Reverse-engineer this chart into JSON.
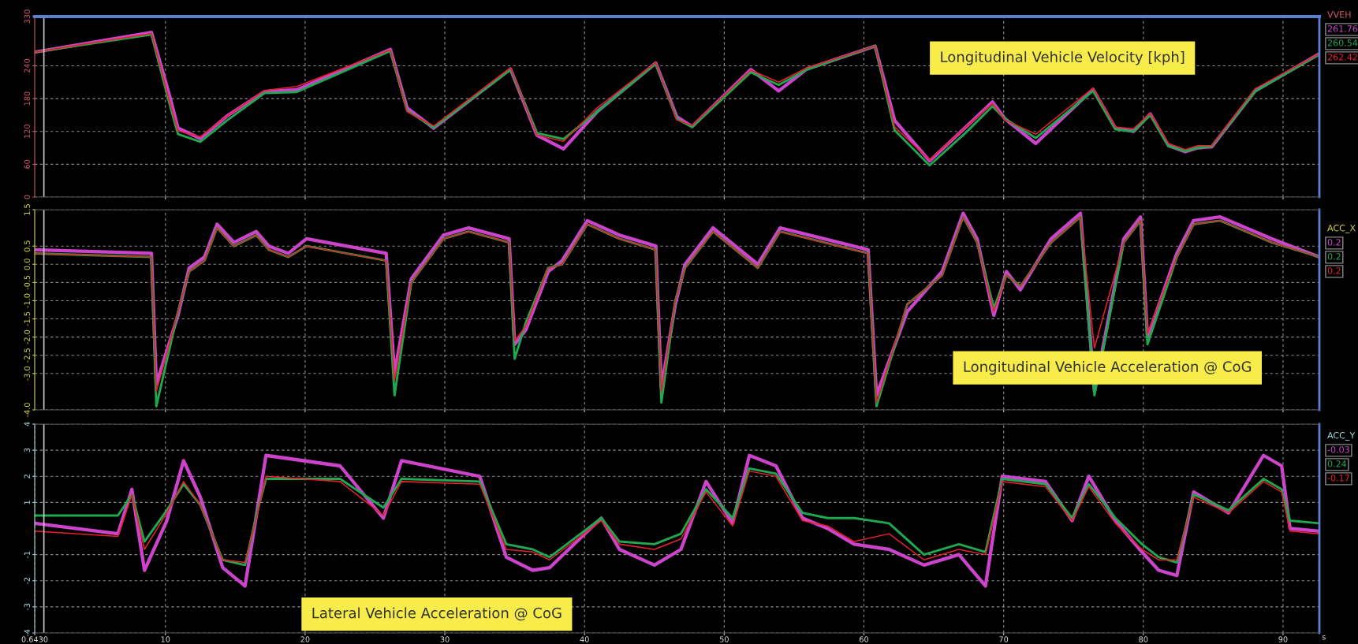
{
  "chart_data": [
    {
      "type": "line",
      "title": "Longitudinal Vehicle Velocity [kph]",
      "x": [
        0.643,
        9.0,
        10.3,
        10.9,
        12.5,
        14.4,
        17.1,
        19.4,
        26.1,
        27.3,
        29.2,
        34.7,
        36.6,
        38.5,
        40.9,
        45.1,
        46.6,
        47.7,
        51.9,
        53.9,
        55.9,
        60.8,
        62.2,
        64.7,
        67.3,
        69.2,
        70.1,
        72.3,
        76.4,
        78.0,
        79.3,
        80.5,
        81.8,
        83.0,
        83.9,
        84.9,
        88.0,
        92.6
      ],
      "series": [
        {
          "color": "#cc44cc",
          "values": [
            265,
            301,
            185,
            126,
            107,
            148,
            193,
            196,
            270,
            163,
            126,
            234,
            113,
            88,
            156,
            245,
            147,
            129,
            233,
            194,
            234,
            276,
            140,
            66,
            128,
            174,
            143,
            98,
            197,
            126,
            120,
            152,
            94,
            83,
            90,
            92,
            194,
            262
          ]
        },
        {
          "color": "#1fa84f",
          "values": [
            265,
            297,
            170,
            115,
            101,
            140,
            190,
            192,
            267,
            158,
            127,
            233,
            117,
            106,
            156,
            244,
            143,
            128,
            228,
            205,
            233,
            276,
            122,
            58,
            118,
            166,
            143,
            108,
            194,
            124,
            120,
            150,
            93,
            84,
            90,
            93,
            193,
            261
          ]
        },
        {
          "color": "#e8202a",
          "values": [
            265,
            299,
            175,
            121,
            110,
            148,
            195,
            202,
            269,
            156,
            130,
            236,
            113,
            102,
            163,
            246,
            141,
            131,
            232,
            210,
            236,
            276,
            128,
            68,
            128,
            171,
            141,
            115,
            199,
            128,
            125,
            153,
            98,
            87,
            94,
            94,
            198,
            262
          ]
        }
      ],
      "xlim": [
        0.643,
        92.6
      ],
      "xticks": [
        10,
        20,
        30,
        40,
        50,
        60,
        70,
        80,
        90
      ],
      "ylim": [
        0,
        330
      ],
      "yticks": [
        0,
        60,
        120,
        180,
        240,
        330
      ],
      "grid": true,
      "tick_labels": "y",
      "ref_lines": [
        {
          "axis": "x",
          "value": 1.3,
          "color": "#c8c8c8"
        }
      ],
      "annotations": [
        "VVEH",
        "261.76",
        "260.54",
        "262.42"
      ]
    },
    {
      "type": "line",
      "title": "Longitudinal Vehicle Acceleration @ CoG",
      "x": [
        0.643,
        9.0,
        9.35,
        10.9,
        11.7,
        12.8,
        13.7,
        14.9,
        16.5,
        17.4,
        18.8,
        20.1,
        25.8,
        26.4,
        27.6,
        29.9,
        31.7,
        34.6,
        35.0,
        35.8,
        37.4,
        38.4,
        40.2,
        42.5,
        45.1,
        45.5,
        46.5,
        47.2,
        49.2,
        52.4,
        54.0,
        60.3,
        60.9,
        63.1,
        65.6,
        67.1,
        68.1,
        69.3,
        70.2,
        71.2,
        73.4,
        75.5,
        76.5,
        78.6,
        79.8,
        80.3,
        82.4,
        83.6,
        85.5,
        89.2,
        92.6
      ],
      "series": [
        {
          "color": "#cc44cc",
          "values": [
            0.4,
            0.3,
            -3.3,
            -1.4,
            -0.1,
            0.2,
            1.1,
            0.6,
            0.9,
            0.5,
            0.3,
            0.7,
            0.3,
            -3.0,
            -0.4,
            0.8,
            1.0,
            0.7,
            -2.2,
            -1.8,
            -0.2,
            0.1,
            1.2,
            0.8,
            0.5,
            -3.4,
            -1.1,
            0.0,
            1.0,
            0.0,
            1.0,
            0.4,
            -3.6,
            -1.3,
            -0.2,
            1.4,
            0.7,
            -1.4,
            -0.2,
            -0.7,
            0.7,
            1.4,
            -3.5,
            0.7,
            1.3,
            -2.0,
            0.3,
            1.2,
            1.3,
            0.7,
            0.2
          ]
        },
        {
          "color": "#1fa84f",
          "values": [
            0.3,
            0.2,
            -3.9,
            -1.3,
            -0.2,
            0.1,
            1.0,
            0.5,
            0.8,
            0.4,
            0.2,
            0.5,
            0.1,
            -3.6,
            -0.5,
            0.7,
            0.9,
            0.6,
            -2.6,
            -1.6,
            -0.1,
            0.0,
            1.1,
            0.7,
            0.4,
            -3.8,
            -1.0,
            -0.1,
            0.9,
            -0.1,
            0.9,
            0.3,
            -3.9,
            -1.1,
            -0.3,
            1.3,
            0.6,
            -1.2,
            -0.3,
            -0.6,
            0.6,
            1.3,
            -3.6,
            0.6,
            1.2,
            -2.2,
            0.2,
            1.1,
            1.2,
            0.6,
            0.2
          ]
        },
        {
          "color": "#e8202a",
          "values": [
            0.3,
            0.2,
            -3.5,
            -1.3,
            -0.2,
            0.1,
            1.0,
            0.5,
            0.8,
            0.4,
            0.2,
            0.5,
            0.1,
            -3.2,
            -0.5,
            0.7,
            0.9,
            0.6,
            -2.1,
            -1.7,
            -0.1,
            0.0,
            1.1,
            0.7,
            0.4,
            -3.5,
            -1.0,
            -0.1,
            0.9,
            -0.1,
            0.9,
            0.3,
            -3.8,
            -1.1,
            -0.3,
            1.3,
            0.6,
            -1.3,
            -0.3,
            -0.6,
            0.6,
            1.3,
            -2.3,
            0.6,
            1.2,
            -1.9,
            0.2,
            1.1,
            1.2,
            0.6,
            0.2
          ]
        }
      ],
      "xlim": [
        0.643,
        92.6
      ],
      "xticks": [
        10,
        20,
        30,
        40,
        50,
        60,
        70,
        80,
        90
      ],
      "ylim": [
        -4.0,
        1.5
      ],
      "yticks": [
        1.5,
        0.5,
        {
          "value": 0,
          "label": "0.0"
        },
        -0.5,
        {
          "value": -1,
          "label": "-1.0"
        },
        -1.5,
        {
          "value": -2,
          "label": "-2.0"
        },
        -2.5,
        {
          "value": -3,
          "label": "-3.0"
        },
        {
          "value": -4,
          "label": "-4.0"
        }
      ],
      "grid": true,
      "tick_labels": "y",
      "ref_lines": [
        {
          "axis": "x",
          "value": 1.3,
          "color": "#c8c8c8"
        }
      ],
      "annotations": [
        "ACC_X",
        "0.2",
        "0.2",
        "0.2"
      ]
    },
    {
      "type": "line",
      "title": "Lateral Vehicle Acceleration @ CoG",
      "xlabel": "s",
      "x": [
        0.643,
        6.6,
        7.6,
        8.5,
        10.1,
        11.3,
        12.5,
        14.1,
        15.7,
        16.6,
        17.2,
        22.5,
        25.6,
        26.9,
        32.5,
        34.4,
        36.3,
        37.5,
        41.2,
        42.5,
        45.0,
        46.9,
        48.7,
        50.6,
        51.8,
        53.7,
        55.6,
        57.4,
        59.3,
        61.8,
        64.3,
        66.8,
        68.7,
        69.9,
        73.0,
        74.9,
        76.1,
        78.0,
        79.9,
        81.1,
        82.4,
        83.6,
        86.1,
        88.6,
        89.9,
        90.5,
        92.6
      ],
      "series": [
        {
          "color": "#cc44cc",
          "values": [
            0.2,
            -0.2,
            1.5,
            -1.6,
            0.3,
            2.6,
            1.2,
            -1.5,
            -2.2,
            0.8,
            2.8,
            2.4,
            0.4,
            2.6,
            2.0,
            -1.1,
            -1.6,
            -1.5,
            0.4,
            -0.8,
            -1.4,
            -0.8,
            1.8,
            0.2,
            2.8,
            2.4,
            0.4,
            0.0,
            -0.6,
            -0.8,
            -1.4,
            -1.0,
            -2.2,
            2.0,
            1.8,
            0.3,
            2.0,
            0.3,
            -0.9,
            -1.6,
            -1.8,
            1.4,
            0.6,
            2.8,
            2.4,
            0.0,
            -0.1
          ]
        },
        {
          "color": "#1fa84f",
          "values": [
            0.5,
            0.5,
            1.3,
            -0.5,
            0.7,
            1.7,
            0.9,
            -1.2,
            -1.4,
            0.7,
            1.9,
            1.9,
            0.8,
            1.9,
            1.8,
            -0.6,
            -0.8,
            -1.1,
            0.4,
            -0.5,
            -0.6,
            -0.2,
            1.5,
            0.4,
            2.3,
            2.1,
            0.6,
            0.4,
            0.4,
            0.2,
            -1.0,
            -0.6,
            -0.9,
            1.9,
            1.7,
            0.4,
            1.7,
            0.4,
            -0.6,
            -1.1,
            -1.3,
            1.3,
            0.7,
            1.9,
            1.5,
            0.3,
            0.2
          ]
        },
        {
          "color": "#e8202a",
          "values": [
            -0.1,
            -0.3,
            1.3,
            -0.8,
            0.6,
            1.8,
            0.9,
            -1.2,
            -1.3,
            0.6,
            2.0,
            1.8,
            0.5,
            1.8,
            1.7,
            -0.8,
            -0.9,
            -1.2,
            0.3,
            -0.6,
            -0.8,
            -0.4,
            1.4,
            0.1,
            2.2,
            2.0,
            0.3,
            0.1,
            -0.5,
            -0.2,
            -1.2,
            -0.8,
            -1.0,
            1.8,
            1.6,
            0.3,
            1.6,
            0.2,
            -0.8,
            -1.2,
            -1.2,
            1.2,
            0.6,
            1.8,
            1.4,
            -0.1,
            -0.2
          ]
        }
      ],
      "xlim": [
        0.643,
        92.6
      ],
      "xticks": [
        {
          "value": 0.643,
          "label": "0.6430"
        },
        10,
        20,
        30,
        40,
        50,
        60,
        70,
        80,
        90
      ],
      "ylim": [
        -4,
        4
      ],
      "yticks": [
        4,
        3,
        2,
        1,
        -1,
        -2,
        -3,
        -4
      ],
      "grid": true,
      "ref_lines": [
        {
          "axis": "x",
          "value": 1.3,
          "color": "#c8c8c8"
        }
      ],
      "annotations": [
        "ACC_Y",
        "-0.03",
        "0.24",
        "-0.17"
      ]
    }
  ]
}
